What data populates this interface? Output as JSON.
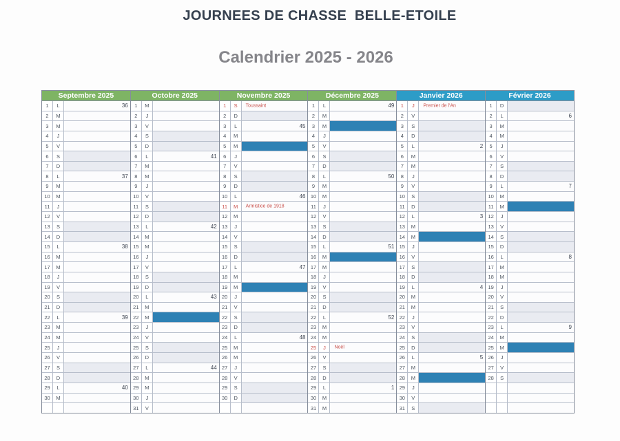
{
  "title": "JOURNEES DE CHASSE  BELLE-ETOILE",
  "subtitle": "Calendrier 2025 - 2026",
  "colors": {
    "header_green": "#7eb464",
    "header_blue": "#2d9cc7",
    "hunt_blue": "#2e81b4",
    "holiday_red": "#c9504b",
    "weekend_gray": "#e9ebf1"
  },
  "months": [
    {
      "name": "Septembre 2025",
      "theme": "green",
      "rows": [
        {
          "n": "1",
          "d": "L",
          "w": "36"
        },
        {
          "n": "2",
          "d": "M"
        },
        {
          "n": "3",
          "d": "M"
        },
        {
          "n": "4",
          "d": "J"
        },
        {
          "n": "5",
          "d": "V"
        },
        {
          "n": "6",
          "d": "S"
        },
        {
          "n": "7",
          "d": "D"
        },
        {
          "n": "8",
          "d": "L",
          "w": "37"
        },
        {
          "n": "9",
          "d": "M"
        },
        {
          "n": "10",
          "d": "M"
        },
        {
          "n": "11",
          "d": "J"
        },
        {
          "n": "12",
          "d": "V"
        },
        {
          "n": "13",
          "d": "S"
        },
        {
          "n": "14",
          "d": "D"
        },
        {
          "n": "15",
          "d": "L",
          "w": "38"
        },
        {
          "n": "16",
          "d": "M"
        },
        {
          "n": "17",
          "d": "M"
        },
        {
          "n": "18",
          "d": "J"
        },
        {
          "n": "19",
          "d": "V"
        },
        {
          "n": "20",
          "d": "S"
        },
        {
          "n": "21",
          "d": "D"
        },
        {
          "n": "22",
          "d": "L",
          "w": "39"
        },
        {
          "n": "23",
          "d": "M"
        },
        {
          "n": "24",
          "d": "M"
        },
        {
          "n": "25",
          "d": "J"
        },
        {
          "n": "26",
          "d": "V"
        },
        {
          "n": "27",
          "d": "S"
        },
        {
          "n": "28",
          "d": "D"
        },
        {
          "n": "29",
          "d": "L",
          "w": "40"
        },
        {
          "n": "30",
          "d": "M"
        },
        {}
      ]
    },
    {
      "name": "Octobre 2025",
      "theme": "green",
      "rows": [
        {
          "n": "1",
          "d": "M"
        },
        {
          "n": "2",
          "d": "J"
        },
        {
          "n": "3",
          "d": "V"
        },
        {
          "n": "4",
          "d": "S"
        },
        {
          "n": "5",
          "d": "D"
        },
        {
          "n": "6",
          "d": "L",
          "w": "41"
        },
        {
          "n": "7",
          "d": "M"
        },
        {
          "n": "8",
          "d": "M"
        },
        {
          "n": "9",
          "d": "J"
        },
        {
          "n": "10",
          "d": "V"
        },
        {
          "n": "11",
          "d": "S"
        },
        {
          "n": "12",
          "d": "D"
        },
        {
          "n": "13",
          "d": "L",
          "w": "42"
        },
        {
          "n": "14",
          "d": "M"
        },
        {
          "n": "15",
          "d": "M"
        },
        {
          "n": "16",
          "d": "J"
        },
        {
          "n": "17",
          "d": "V"
        },
        {
          "n": "18",
          "d": "S"
        },
        {
          "n": "19",
          "d": "D"
        },
        {
          "n": "20",
          "d": "L",
          "w": "43"
        },
        {
          "n": "21",
          "d": "M"
        },
        {
          "n": "22",
          "d": "M",
          "hunt": true
        },
        {
          "n": "23",
          "d": "J"
        },
        {
          "n": "24",
          "d": "V"
        },
        {
          "n": "25",
          "d": "S"
        },
        {
          "n": "26",
          "d": "D"
        },
        {
          "n": "27",
          "d": "L",
          "w": "44"
        },
        {
          "n": "28",
          "d": "M"
        },
        {
          "n": "29",
          "d": "M"
        },
        {
          "n": "30",
          "d": "J"
        },
        {
          "n": "31",
          "d": "V"
        }
      ]
    },
    {
      "name": "Novembre 2025",
      "theme": "green",
      "rows": [
        {
          "n": "1",
          "d": "S",
          "holiday": "Toussaint"
        },
        {
          "n": "2",
          "d": "D"
        },
        {
          "n": "3",
          "d": "L",
          "w": "45"
        },
        {
          "n": "4",
          "d": "M"
        },
        {
          "n": "5",
          "d": "M",
          "hunt": true
        },
        {
          "n": "6",
          "d": "J"
        },
        {
          "n": "7",
          "d": "V"
        },
        {
          "n": "8",
          "d": "S"
        },
        {
          "n": "9",
          "d": "D"
        },
        {
          "n": "10",
          "d": "L",
          "w": "46"
        },
        {
          "n": "11",
          "d": "M",
          "holiday": "Armistice de 1918"
        },
        {
          "n": "12",
          "d": "M"
        },
        {
          "n": "13",
          "d": "J"
        },
        {
          "n": "14",
          "d": "V"
        },
        {
          "n": "15",
          "d": "S"
        },
        {
          "n": "16",
          "d": "D"
        },
        {
          "n": "17",
          "d": "L",
          "w": "47"
        },
        {
          "n": "18",
          "d": "M"
        },
        {
          "n": "19",
          "d": "M",
          "hunt": true
        },
        {
          "n": "20",
          "d": "J"
        },
        {
          "n": "21",
          "d": "V"
        },
        {
          "n": "22",
          "d": "S"
        },
        {
          "n": "23",
          "d": "D"
        },
        {
          "n": "24",
          "d": "L",
          "w": "48"
        },
        {
          "n": "25",
          "d": "M"
        },
        {
          "n": "26",
          "d": "M"
        },
        {
          "n": "27",
          "d": "J"
        },
        {
          "n": "28",
          "d": "V"
        },
        {
          "n": "29",
          "d": "S"
        },
        {
          "n": "30",
          "d": "D"
        },
        {}
      ]
    },
    {
      "name": "Décembre 2025",
      "theme": "green",
      "rows": [
        {
          "n": "1",
          "d": "L",
          "w": "49"
        },
        {
          "n": "2",
          "d": "M"
        },
        {
          "n": "3",
          "d": "M",
          "hunt": true
        },
        {
          "n": "4",
          "d": "J"
        },
        {
          "n": "5",
          "d": "V"
        },
        {
          "n": "6",
          "d": "S"
        },
        {
          "n": "7",
          "d": "D"
        },
        {
          "n": "8",
          "d": "L",
          "w": "50"
        },
        {
          "n": "9",
          "d": "M"
        },
        {
          "n": "10",
          "d": "M"
        },
        {
          "n": "11",
          "d": "J"
        },
        {
          "n": "12",
          "d": "V"
        },
        {
          "n": "13",
          "d": "S"
        },
        {
          "n": "14",
          "d": "D"
        },
        {
          "n": "15",
          "d": "L",
          "w": "51"
        },
        {
          "n": "16",
          "d": "M",
          "hunt": true
        },
        {
          "n": "17",
          "d": "M"
        },
        {
          "n": "18",
          "d": "J"
        },
        {
          "n": "19",
          "d": "V"
        },
        {
          "n": "20",
          "d": "S"
        },
        {
          "n": "21",
          "d": "D"
        },
        {
          "n": "22",
          "d": "L",
          "w": "52"
        },
        {
          "n": "23",
          "d": "M"
        },
        {
          "n": "24",
          "d": "M"
        },
        {
          "n": "25",
          "d": "J",
          "holiday": "Noël"
        },
        {
          "n": "26",
          "d": "V"
        },
        {
          "n": "27",
          "d": "S"
        },
        {
          "n": "28",
          "d": "D"
        },
        {
          "n": "29",
          "d": "L",
          "w": "1"
        },
        {
          "n": "30",
          "d": "M"
        },
        {
          "n": "31",
          "d": "M"
        }
      ]
    },
    {
      "name": "Janvier 2026",
      "theme": "blue",
      "rows": [
        {
          "n": "1",
          "d": "J",
          "holiday": "Premier de l'An"
        },
        {
          "n": "2",
          "d": "V"
        },
        {
          "n": "3",
          "d": "S"
        },
        {
          "n": "4",
          "d": "D"
        },
        {
          "n": "5",
          "d": "L",
          "w": "2"
        },
        {
          "n": "6",
          "d": "M"
        },
        {
          "n": "7",
          "d": "M"
        },
        {
          "n": "8",
          "d": "J"
        },
        {
          "n": "9",
          "d": "V"
        },
        {
          "n": "10",
          "d": "S"
        },
        {
          "n": "11",
          "d": "D"
        },
        {
          "n": "12",
          "d": "L",
          "w": "3"
        },
        {
          "n": "13",
          "d": "M"
        },
        {
          "n": "14",
          "d": "M",
          "hunt": true
        },
        {
          "n": "15",
          "d": "J"
        },
        {
          "n": "16",
          "d": "V"
        },
        {
          "n": "17",
          "d": "S"
        },
        {
          "n": "18",
          "d": "D"
        },
        {
          "n": "19",
          "d": "L",
          "w": "4"
        },
        {
          "n": "20",
          "d": "M"
        },
        {
          "n": "21",
          "d": "M"
        },
        {
          "n": "22",
          "d": "J"
        },
        {
          "n": "23",
          "d": "V"
        },
        {
          "n": "24",
          "d": "S"
        },
        {
          "n": "25",
          "d": "D"
        },
        {
          "n": "26",
          "d": "L",
          "w": "5"
        },
        {
          "n": "27",
          "d": "M"
        },
        {
          "n": "28",
          "d": "M",
          "hunt": true
        },
        {
          "n": "29",
          "d": "J"
        },
        {
          "n": "30",
          "d": "V"
        },
        {
          "n": "31",
          "d": "S"
        }
      ]
    },
    {
      "name": "Février 2026",
      "theme": "blue",
      "rows": [
        {
          "n": "1",
          "d": "D"
        },
        {
          "n": "2",
          "d": "L",
          "w": "6"
        },
        {
          "n": "3",
          "d": "M"
        },
        {
          "n": "4",
          "d": "M"
        },
        {
          "n": "5",
          "d": "J"
        },
        {
          "n": "6",
          "d": "V"
        },
        {
          "n": "7",
          "d": "S"
        },
        {
          "n": "8",
          "d": "D"
        },
        {
          "n": "9",
          "d": "L",
          "w": "7"
        },
        {
          "n": "10",
          "d": "M"
        },
        {
          "n": "11",
          "d": "M",
          "hunt": true
        },
        {
          "n": "12",
          "d": "J"
        },
        {
          "n": "13",
          "d": "V"
        },
        {
          "n": "14",
          "d": "S"
        },
        {
          "n": "15",
          "d": "D"
        },
        {
          "n": "16",
          "d": "L",
          "w": "8"
        },
        {
          "n": "17",
          "d": "M"
        },
        {
          "n": "18",
          "d": "M"
        },
        {
          "n": "19",
          "d": "J"
        },
        {
          "n": "20",
          "d": "V"
        },
        {
          "n": "21",
          "d": "S"
        },
        {
          "n": "22",
          "d": "D"
        },
        {
          "n": "23",
          "d": "L",
          "w": "9"
        },
        {
          "n": "24",
          "d": "M"
        },
        {
          "n": "25",
          "d": "M",
          "hunt": true
        },
        {
          "n": "26",
          "d": "J"
        },
        {
          "n": "27",
          "d": "V"
        },
        {
          "n": "28",
          "d": "S"
        },
        {},
        {},
        {}
      ]
    }
  ]
}
